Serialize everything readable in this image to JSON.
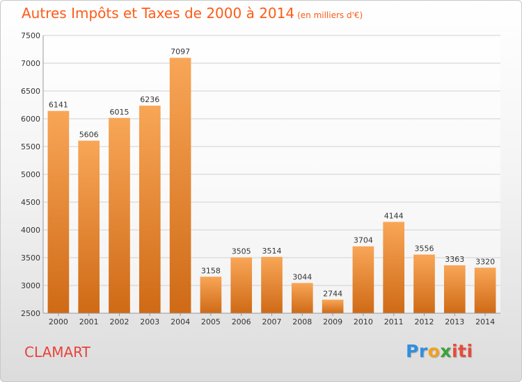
{
  "header": {
    "title": "Autres Impôts et Taxes de 2000 à 2014",
    "unit": "(en milliers d'€)"
  },
  "footer": {
    "city": "CLAMART",
    "logo": "Proxiti"
  },
  "colors": {
    "title": "#ff5a17",
    "city": "#e8423a",
    "bar_top": "#f8a657",
    "bar_bottom": "#cf6a16"
  },
  "chart_data": {
    "type": "bar",
    "title": "Autres Impôts et Taxes de 2000 à 2014",
    "subtitle": "(en milliers d'€)",
    "categories": [
      "2000",
      "2001",
      "2002",
      "2003",
      "2004",
      "2005",
      "2006",
      "2007",
      "2008",
      "2009",
      "2010",
      "2011",
      "2012",
      "2013",
      "2014"
    ],
    "values": [
      6141,
      5606,
      6015,
      6236,
      7097,
      3158,
      3505,
      3514,
      3044,
      2744,
      3704,
      4144,
      3556,
      3363,
      3320
    ],
    "ylim": [
      2500,
      7500
    ],
    "yticks": [
      2500,
      3000,
      3500,
      4000,
      4500,
      5000,
      5500,
      6000,
      6500,
      7000,
      7500
    ],
    "grid": true,
    "xlabel": "",
    "ylabel": ""
  }
}
